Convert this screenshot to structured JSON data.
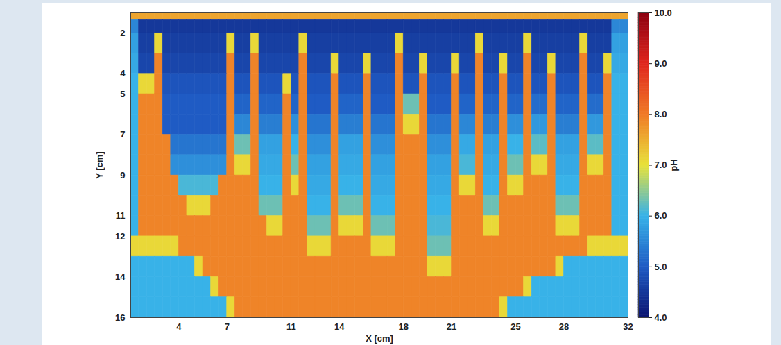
{
  "chart_data": {
    "type": "heatmap",
    "x_label": "X [cm]",
    "y_label": "Y [cm]",
    "xlim": [
      1,
      32
    ],
    "ylim": [
      16,
      1
    ],
    "xticks": [
      4,
      7,
      11,
      14,
      18,
      21,
      25,
      28,
      32
    ],
    "yticks": [
      2,
      4,
      5,
      7,
      9,
      11,
      12,
      14,
      16
    ],
    "x_edges": [
      1,
      1.5,
      2,
      2.5,
      3,
      3.5,
      4,
      4.5,
      5,
      5.5,
      6,
      6.5,
      7,
      7.5,
      8,
      8.5,
      9,
      9.5,
      10,
      10.5,
      11,
      11.5,
      12,
      12.5,
      13,
      13.5,
      14,
      14.5,
      15,
      15.5,
      16,
      16.5,
      17,
      17.5,
      18,
      18.5,
      19,
      19.5,
      20,
      20.5,
      21,
      21.5,
      22,
      22.5,
      23,
      23.5,
      24,
      24.5,
      25,
      25.5,
      26,
      26.5,
      27,
      27.5,
      28,
      28.5,
      29,
      29.5,
      30,
      30.5,
      31,
      31.5,
      32
    ],
    "y_edges": [
      1,
      1.35,
      2,
      3,
      4,
      5,
      6,
      7,
      8,
      9,
      10,
      11,
      12,
      13,
      14,
      15,
      16
    ],
    "values": [
      [
        7.6,
        7.6,
        7.6,
        7.6,
        7.6,
        7.6,
        7.6,
        7.6,
        7.6,
        7.6,
        7.6,
        7.6,
        7.6,
        7.6,
        7.6,
        7.6,
        7.6,
        7.6,
        7.6,
        7.6,
        7.6,
        7.6,
        7.6,
        7.6,
        7.6,
        7.6,
        7.6,
        7.6,
        7.6,
        7.6,
        7.6,
        7.6,
        7.6,
        7.6,
        7.6,
        7.6,
        7.6,
        7.6,
        7.6,
        7.6,
        7.6,
        7.6,
        7.6,
        7.6,
        7.6,
        7.6,
        7.6,
        7.6,
        7.6,
        7.6,
        7.6,
        7.6,
        7.6,
        7.6,
        7.6,
        7.6,
        7.6,
        7.6,
        7.6,
        7.6,
        7.6,
        7.6
      ],
      [
        5.5,
        4.5,
        4.5,
        4.5,
        4.5,
        4.5,
        4.5,
        4.5,
        4.5,
        4.5,
        4.5,
        4.5,
        4.5,
        4.5,
        4.5,
        4.5,
        4.5,
        4.5,
        4.5,
        4.5,
        4.5,
        4.5,
        4.5,
        4.5,
        4.5,
        4.5,
        4.5,
        4.5,
        4.5,
        4.5,
        4.5,
        4.5,
        4.5,
        4.5,
        4.5,
        4.5,
        4.5,
        4.5,
        4.5,
        4.5,
        4.5,
        4.5,
        4.5,
        4.5,
        4.5,
        4.5,
        4.5,
        4.5,
        4.5,
        4.5,
        4.5,
        4.5,
        4.5,
        4.5,
        4.5,
        4.5,
        4.5,
        4.5,
        4.5,
        4.5,
        5.5,
        5.5
      ],
      [
        5.8,
        4.6,
        4.6,
        7.1,
        4.6,
        4.6,
        4.6,
        4.6,
        4.6,
        4.6,
        4.6,
        4.6,
        7.1,
        4.6,
        4.6,
        7.1,
        4.6,
        4.6,
        4.6,
        4.6,
        4.6,
        7.1,
        4.6,
        4.6,
        4.6,
        4.6,
        4.6,
        4.6,
        4.6,
        4.6,
        4.6,
        4.6,
        4.6,
        7.1,
        4.6,
        4.6,
        4.6,
        4.6,
        4.6,
        4.6,
        4.6,
        4.6,
        4.6,
        7.1,
        4.6,
        4.6,
        4.6,
        4.6,
        4.6,
        7.1,
        4.6,
        4.6,
        4.6,
        4.6,
        4.6,
        4.6,
        7.1,
        4.6,
        4.6,
        4.6,
        5.8,
        5.8
      ],
      [
        5.9,
        4.7,
        4.7,
        7.9,
        4.7,
        4.7,
        4.7,
        4.7,
        4.7,
        4.7,
        4.7,
        4.7,
        7.9,
        4.7,
        4.7,
        7.9,
        4.7,
        4.7,
        4.7,
        4.7,
        4.7,
        7.9,
        4.7,
        4.7,
        4.7,
        7.1,
        4.7,
        4.7,
        4.7,
        7.1,
        4.7,
        4.7,
        4.7,
        7.9,
        4.7,
        4.7,
        7.1,
        4.7,
        4.7,
        4.7,
        7.1,
        4.7,
        4.7,
        7.9,
        4.7,
        4.7,
        7.1,
        4.7,
        4.7,
        7.9,
        4.7,
        4.7,
        7.1,
        4.7,
        4.7,
        4.7,
        7.9,
        4.7,
        4.7,
        7.1,
        5.9,
        5.9
      ],
      [
        6.0,
        7.1,
        7.1,
        7.9,
        4.9,
        4.9,
        4.9,
        4.9,
        4.9,
        4.9,
        4.9,
        4.9,
        7.9,
        4.9,
        4.9,
        7.9,
        4.9,
        4.9,
        4.9,
        7.1,
        4.9,
        7.9,
        4.9,
        4.9,
        4.9,
        7.9,
        4.9,
        4.9,
        4.9,
        7.9,
        4.9,
        4.9,
        4.9,
        7.9,
        4.9,
        4.9,
        7.9,
        4.9,
        4.9,
        4.9,
        7.9,
        4.9,
        4.9,
        7.9,
        4.9,
        4.9,
        7.9,
        4.9,
        4.9,
        7.9,
        4.9,
        4.9,
        7.9,
        4.9,
        4.9,
        4.9,
        7.9,
        4.9,
        4.9,
        7.9,
        6.0,
        6.0
      ],
      [
        6.0,
        7.9,
        7.9,
        7.9,
        5.0,
        5.0,
        5.0,
        5.0,
        5.0,
        5.0,
        5.0,
        5.0,
        7.9,
        5.1,
        5.1,
        7.9,
        5.1,
        5.1,
        5.1,
        7.9,
        5.1,
        7.9,
        5.0,
        5.0,
        5.0,
        7.9,
        5.1,
        5.1,
        5.1,
        7.9,
        5.0,
        5.0,
        5.0,
        7.9,
        6.3,
        6.3,
        7.9,
        5.0,
        5.0,
        5.0,
        7.9,
        5.1,
        5.1,
        7.9,
        5.1,
        5.1,
        7.9,
        5.1,
        5.1,
        7.9,
        5.2,
        5.2,
        7.9,
        5.1,
        5.1,
        5.1,
        7.9,
        5.2,
        5.2,
        7.9,
        6.0,
        6.0
      ],
      [
        6.0,
        7.9,
        7.9,
        7.9,
        5.0,
        5.0,
        5.0,
        5.0,
        5.0,
        5.0,
        5.0,
        5.0,
        7.9,
        5.5,
        5.5,
        7.9,
        5.4,
        5.4,
        5.4,
        7.9,
        5.6,
        7.9,
        5.3,
        5.3,
        5.3,
        7.9,
        5.4,
        5.4,
        5.4,
        7.9,
        5.3,
        5.3,
        5.3,
        7.9,
        7.1,
        7.1,
        7.9,
        5.3,
        5.3,
        5.3,
        7.9,
        5.5,
        5.5,
        7.9,
        5.4,
        5.4,
        7.9,
        5.6,
        5.6,
        7.9,
        5.7,
        5.7,
        7.9,
        5.4,
        5.4,
        5.4,
        7.9,
        5.7,
        5.7,
        7.9,
        6.0,
        6.0
      ],
      [
        6.0,
        7.9,
        7.9,
        7.9,
        7.9,
        5.3,
        5.3,
        5.3,
        5.3,
        5.3,
        5.3,
        5.3,
        7.9,
        6.3,
        6.3,
        7.9,
        5.8,
        5.8,
        5.8,
        7.9,
        6.0,
        7.9,
        5.6,
        5.6,
        5.6,
        7.9,
        5.8,
        5.8,
        5.8,
        7.9,
        5.6,
        5.6,
        5.6,
        7.9,
        7.9,
        7.9,
        7.9,
        5.6,
        5.6,
        5.6,
        7.9,
        5.9,
        5.9,
        7.9,
        5.8,
        5.8,
        7.9,
        6.0,
        6.0,
        7.9,
        6.2,
        6.2,
        7.9,
        5.8,
        5.8,
        5.8,
        7.9,
        6.2,
        6.2,
        7.9,
        6.0,
        6.0
      ],
      [
        6.0,
        7.9,
        7.9,
        7.9,
        7.9,
        5.6,
        5.6,
        5.6,
        5.6,
        5.6,
        5.6,
        5.6,
        7.9,
        7.1,
        7.1,
        7.9,
        5.9,
        5.9,
        5.9,
        7.9,
        6.3,
        7.9,
        5.8,
        5.8,
        5.8,
        7.9,
        5.9,
        5.9,
        5.9,
        7.9,
        5.8,
        5.8,
        5.8,
        7.9,
        7.9,
        7.9,
        7.9,
        5.8,
        5.8,
        5.8,
        7.9,
        6.1,
        6.1,
        7.9,
        5.9,
        5.9,
        7.9,
        6.3,
        6.3,
        7.9,
        7.1,
        7.1,
        7.9,
        5.9,
        5.9,
        5.9,
        7.9,
        7.1,
        7.1,
        7.9,
        6.0,
        6.0
      ],
      [
        6.0,
        7.9,
        7.9,
        7.9,
        7.9,
        7.9,
        6.1,
        6.1,
        6.1,
        6.1,
        6.1,
        7.9,
        7.9,
        7.9,
        7.9,
        7.9,
        6.0,
        6.0,
        6.0,
        7.9,
        7.1,
        7.9,
        5.9,
        5.9,
        5.9,
        7.9,
        6.0,
        6.0,
        6.0,
        7.9,
        5.9,
        5.9,
        5.9,
        7.9,
        7.9,
        7.9,
        7.9,
        5.9,
        5.9,
        5.9,
        7.9,
        7.1,
        7.1,
        7.9,
        6.0,
        6.0,
        7.9,
        7.1,
        7.1,
        7.9,
        7.9,
        7.9,
        7.9,
        6.0,
        6.0,
        6.0,
        7.9,
        7.9,
        7.9,
        7.9,
        6.0,
        6.0
      ],
      [
        6.0,
        7.9,
        7.9,
        7.9,
        7.9,
        7.9,
        7.9,
        7.1,
        7.1,
        7.1,
        7.9,
        7.9,
        7.9,
        7.9,
        7.9,
        7.9,
        6.3,
        6.3,
        6.3,
        7.9,
        7.9,
        7.9,
        6.0,
        6.0,
        6.0,
        7.9,
        6.3,
        6.3,
        6.3,
        7.9,
        6.0,
        6.0,
        6.0,
        7.9,
        7.9,
        7.9,
        7.9,
        6.0,
        6.0,
        6.0,
        7.9,
        7.9,
        7.9,
        7.9,
        6.3,
        6.3,
        7.9,
        7.9,
        7.9,
        7.9,
        7.9,
        7.9,
        7.9,
        6.3,
        6.3,
        6.3,
        7.9,
        7.9,
        7.9,
        7.9,
        6.0,
        6.0
      ],
      [
        6.0,
        7.9,
        7.9,
        7.9,
        7.9,
        7.9,
        7.9,
        7.9,
        7.9,
        7.9,
        7.9,
        7.9,
        7.9,
        7.9,
        7.9,
        7.9,
        7.9,
        7.1,
        7.1,
        7.9,
        7.9,
        7.9,
        6.3,
        6.3,
        6.3,
        7.9,
        7.1,
        7.1,
        7.1,
        7.9,
        6.3,
        6.3,
        6.3,
        7.9,
        7.9,
        7.9,
        7.9,
        6.1,
        6.1,
        6.1,
        7.9,
        7.9,
        7.9,
        7.9,
        7.1,
        7.1,
        7.9,
        7.9,
        7.9,
        7.9,
        7.9,
        7.9,
        7.9,
        7.1,
        7.1,
        7.1,
        7.9,
        7.9,
        7.9,
        7.9,
        6.0,
        6.0
      ],
      [
        7.1,
        7.1,
        7.1,
        7.1,
        7.1,
        7.1,
        7.9,
        7.9,
        7.9,
        7.9,
        7.9,
        7.9,
        7.9,
        7.9,
        7.9,
        7.9,
        7.9,
        7.9,
        7.9,
        7.9,
        7.9,
        7.9,
        7.1,
        7.1,
        7.1,
        7.9,
        7.9,
        7.9,
        7.9,
        7.9,
        7.1,
        7.1,
        7.1,
        7.9,
        7.9,
        7.9,
        7.9,
        6.3,
        6.3,
        6.3,
        7.9,
        7.9,
        7.9,
        7.9,
        7.9,
        7.9,
        7.9,
        7.9,
        7.9,
        7.9,
        7.9,
        7.9,
        7.9,
        7.9,
        7.9,
        7.9,
        7.9,
        7.1,
        7.1,
        7.1,
        7.1,
        7.1
      ],
      [
        6.0,
        6.0,
        6.0,
        6.0,
        6.0,
        6.0,
        6.0,
        6.0,
        7.1,
        7.9,
        7.9,
        7.9,
        7.9,
        7.9,
        7.9,
        7.9,
        7.9,
        7.9,
        7.9,
        7.9,
        7.9,
        7.9,
        7.9,
        7.9,
        7.9,
        7.9,
        7.9,
        7.9,
        7.9,
        7.9,
        7.9,
        7.9,
        7.9,
        7.9,
        7.9,
        7.9,
        7.9,
        7.1,
        7.1,
        7.1,
        7.9,
        7.9,
        7.9,
        7.9,
        7.9,
        7.9,
        7.9,
        7.9,
        7.9,
        7.9,
        7.9,
        7.9,
        7.9,
        7.1,
        6.0,
        6.0,
        6.0,
        6.0,
        6.0,
        6.0,
        6.0,
        6.0
      ],
      [
        6.0,
        6.0,
        6.0,
        6.0,
        6.0,
        6.0,
        6.0,
        6.0,
        6.0,
        6.0,
        7.1,
        7.9,
        7.9,
        7.9,
        7.9,
        7.9,
        7.9,
        7.9,
        7.9,
        7.9,
        7.9,
        7.9,
        7.9,
        7.9,
        7.9,
        7.9,
        7.9,
        7.9,
        7.9,
        7.9,
        7.9,
        7.9,
        7.9,
        7.9,
        7.9,
        7.9,
        7.9,
        7.9,
        7.9,
        7.9,
        7.9,
        7.9,
        7.9,
        7.9,
        7.9,
        7.9,
        7.9,
        7.9,
        7.9,
        7.1,
        6.0,
        6.0,
        6.0,
        6.0,
        6.0,
        6.0,
        6.0,
        6.0,
        6.0,
        6.0,
        6.0,
        6.0
      ],
      [
        6.0,
        6.0,
        6.0,
        6.0,
        6.0,
        6.0,
        6.0,
        6.0,
        6.0,
        6.0,
        6.0,
        6.0,
        7.1,
        7.9,
        7.9,
        7.9,
        7.9,
        7.9,
        7.9,
        7.9,
        7.9,
        7.9,
        7.9,
        7.9,
        7.9,
        7.9,
        7.9,
        7.9,
        7.9,
        7.9,
        7.9,
        7.9,
        7.9,
        7.9,
        7.9,
        7.9,
        7.9,
        7.9,
        7.9,
        7.9,
        7.9,
        7.9,
        7.9,
        7.9,
        7.9,
        7.9,
        7.1,
        6.0,
        6.0,
        6.0,
        6.0,
        6.0,
        6.0,
        6.0,
        6.0,
        6.0,
        6.0,
        6.0,
        6.0,
        6.0,
        6.0,
        6.0
      ]
    ],
    "colorbar": {
      "label": "pH",
      "range": [
        4,
        10
      ],
      "ticks": [
        4,
        5,
        6,
        7,
        8,
        9,
        10
      ]
    }
  }
}
